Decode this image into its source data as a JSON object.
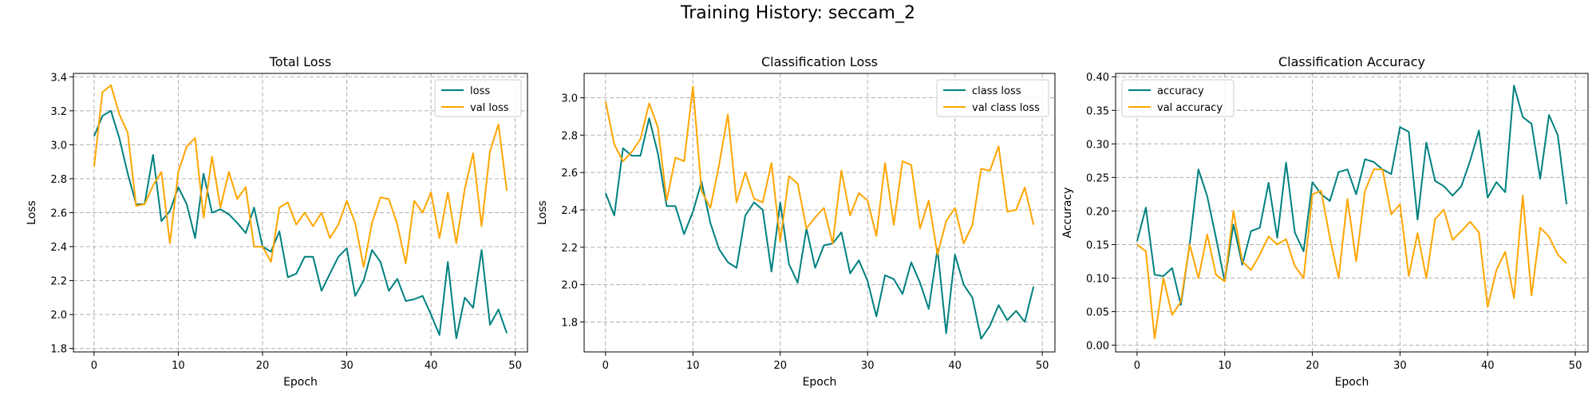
{
  "figure": {
    "title": "Training History: seccam_2"
  },
  "colors": {
    "train": "#008080",
    "val": "#FFA500",
    "grid": "#b0b0b0"
  },
  "chart_data": [
    {
      "type": "line",
      "title": "Total Loss",
      "xlabel": "Epoch",
      "ylabel": "Loss",
      "xlim": [
        -2.45,
        51.45
      ],
      "ylim": [
        1.78,
        3.42
      ],
      "xticks": [
        0,
        10,
        20,
        30,
        40,
        50
      ],
      "xtick_labels": [
        "0",
        "10",
        "20",
        "30",
        "40",
        "50"
      ],
      "yticks": [
        1.8,
        2.0,
        2.2,
        2.4,
        2.6,
        2.8,
        3.0,
        3.2,
        3.4
      ],
      "ytick_labels": [
        "1.8",
        "2.0",
        "2.2",
        "2.4",
        "2.6",
        "2.8",
        "3.0",
        "3.2",
        "3.4"
      ],
      "grid": true,
      "legend_position": "upper right",
      "x": [
        0,
        1,
        2,
        3,
        4,
        5,
        6,
        7,
        8,
        9,
        10,
        11,
        12,
        13,
        14,
        15,
        16,
        17,
        18,
        19,
        20,
        21,
        22,
        23,
        24,
        25,
        26,
        27,
        28,
        29,
        30,
        31,
        32,
        33,
        34,
        35,
        36,
        37,
        38,
        39,
        40,
        41,
        42,
        43,
        44,
        45,
        46,
        47,
        48,
        49
      ],
      "series": [
        {
          "name": "loss",
          "color": "#008080",
          "values": [
            3.05,
            3.17,
            3.2,
            3.04,
            2.83,
            2.65,
            2.65,
            2.94,
            2.55,
            2.61,
            2.75,
            2.65,
            2.45,
            2.83,
            2.6,
            2.62,
            2.59,
            2.54,
            2.48,
            2.63,
            2.4,
            2.37,
            2.49,
            2.22,
            2.24,
            2.34,
            2.34,
            2.14,
            2.24,
            2.34,
            2.39,
            2.11,
            2.2,
            2.38,
            2.31,
            2.14,
            2.21,
            2.08,
            2.09,
            2.11,
            2.0,
            1.88,
            2.31,
            1.86,
            2.1,
            2.04,
            2.38,
            1.94,
            2.03,
            1.89
          ]
        },
        {
          "name": "val loss",
          "color": "#FFA500",
          "values": [
            2.87,
            3.31,
            3.35,
            3.18,
            3.07,
            2.64,
            2.65,
            2.76,
            2.84,
            2.42,
            2.84,
            2.99,
            3.04,
            2.57,
            2.93,
            2.63,
            2.84,
            2.68,
            2.75,
            2.4,
            2.4,
            2.31,
            2.63,
            2.66,
            2.53,
            2.6,
            2.52,
            2.6,
            2.45,
            2.53,
            2.67,
            2.54,
            2.28,
            2.54,
            2.69,
            2.68,
            2.53,
            2.3,
            2.67,
            2.6,
            2.72,
            2.45,
            2.72,
            2.42,
            2.74,
            2.95,
            2.52,
            2.96,
            3.12,
            2.73
          ]
        }
      ]
    },
    {
      "type": "line",
      "title": "Classification Loss",
      "xlabel": "Epoch",
      "ylabel": "Loss",
      "xlim": [
        -2.45,
        51.45
      ],
      "ylim": [
        1.64,
        3.13
      ],
      "xticks": [
        0,
        10,
        20,
        30,
        40,
        50
      ],
      "xtick_labels": [
        "0",
        "10",
        "20",
        "30",
        "40",
        "50"
      ],
      "yticks": [
        1.8,
        2.0,
        2.2,
        2.4,
        2.6,
        2.8,
        3.0
      ],
      "ytick_labels": [
        "1.8",
        "2.0",
        "2.2",
        "2.4",
        "2.6",
        "2.8",
        "3.0"
      ],
      "grid": true,
      "legend_position": "upper right",
      "x": [
        0,
        1,
        2,
        3,
        4,
        5,
        6,
        7,
        8,
        9,
        10,
        11,
        12,
        13,
        14,
        15,
        16,
        17,
        18,
        19,
        20,
        21,
        22,
        23,
        24,
        25,
        26,
        27,
        28,
        29,
        30,
        31,
        32,
        33,
        34,
        35,
        36,
        37,
        38,
        39,
        40,
        41,
        42,
        43,
        44,
        45,
        46,
        47,
        48,
        49
      ],
      "series": [
        {
          "name": "class loss",
          "color": "#008080",
          "values": [
            2.49,
            2.37,
            2.73,
            2.69,
            2.69,
            2.89,
            2.7,
            2.42,
            2.42,
            2.27,
            2.39,
            2.55,
            2.33,
            2.19,
            2.12,
            2.09,
            2.37,
            2.44,
            2.4,
            2.07,
            2.44,
            2.11,
            2.01,
            2.3,
            2.09,
            2.21,
            2.22,
            2.28,
            2.06,
            2.13,
            2.02,
            1.83,
            2.05,
            2.03,
            1.95,
            2.12,
            2.01,
            1.87,
            2.19,
            1.74,
            2.16,
            2.0,
            1.93,
            1.71,
            1.78,
            1.89,
            1.81,
            1.86,
            1.8,
            1.99
          ]
        },
        {
          "name": "val class loss",
          "color": "#FFA500",
          "values": [
            2.98,
            2.75,
            2.66,
            2.71,
            2.78,
            2.97,
            2.84,
            2.45,
            2.68,
            2.66,
            3.06,
            2.5,
            2.41,
            2.64,
            2.91,
            2.44,
            2.6,
            2.46,
            2.44,
            2.65,
            2.23,
            2.58,
            2.54,
            2.3,
            2.36,
            2.41,
            2.22,
            2.61,
            2.37,
            2.49,
            2.45,
            2.26,
            2.65,
            2.32,
            2.66,
            2.64,
            2.3,
            2.45,
            2.16,
            2.34,
            2.41,
            2.22,
            2.32,
            2.62,
            2.61,
            2.74,
            2.39,
            2.4,
            2.52,
            2.32
          ]
        }
      ]
    },
    {
      "type": "line",
      "title": "Classification Accuracy",
      "xlabel": "Epoch",
      "ylabel": "Accuracy",
      "xlim": [
        -2.45,
        51.45
      ],
      "ylim": [
        -0.01,
        0.405
      ],
      "xticks": [
        0,
        10,
        20,
        30,
        40,
        50
      ],
      "xtick_labels": [
        "0",
        "10",
        "20",
        "30",
        "40",
        "50"
      ],
      "yticks": [
        0.0,
        0.05,
        0.1,
        0.15,
        0.2,
        0.25,
        0.3,
        0.35,
        0.4
      ],
      "ytick_labels": [
        "0.00",
        "0.05",
        "0.10",
        "0.15",
        "0.20",
        "0.25",
        "0.30",
        "0.35",
        "0.40"
      ],
      "grid": true,
      "legend_position": "upper left",
      "x": [
        0,
        1,
        2,
        3,
        4,
        5,
        6,
        7,
        8,
        9,
        10,
        11,
        12,
        13,
        14,
        15,
        16,
        17,
        18,
        19,
        20,
        21,
        22,
        23,
        24,
        25,
        26,
        27,
        28,
        29,
        30,
        31,
        32,
        33,
        34,
        35,
        36,
        37,
        38,
        39,
        40,
        41,
        42,
        43,
        44,
        45,
        46,
        47,
        48,
        49
      ],
      "series": [
        {
          "name": "accuracy",
          "color": "#008080",
          "values": [
            0.155,
            0.205,
            0.105,
            0.103,
            0.115,
            0.06,
            0.15,
            0.262,
            0.222,
            0.16,
            0.095,
            0.18,
            0.12,
            0.17,
            0.175,
            0.242,
            0.16,
            0.272,
            0.168,
            0.14,
            0.243,
            0.225,
            0.215,
            0.258,
            0.262,
            0.225,
            0.277,
            0.273,
            0.262,
            0.255,
            0.325,
            0.318,
            0.187,
            0.302,
            0.245,
            0.237,
            0.223,
            0.237,
            0.275,
            0.32,
            0.22,
            0.243,
            0.228,
            0.387,
            0.34,
            0.33,
            0.248,
            0.343,
            0.313,
            0.21
          ]
        },
        {
          "name": "val accuracy",
          "color": "#FFA500",
          "values": [
            0.15,
            0.14,
            0.01,
            0.1,
            0.045,
            0.065,
            0.15,
            0.1,
            0.165,
            0.105,
            0.095,
            0.2,
            0.125,
            0.112,
            0.135,
            0.162,
            0.15,
            0.158,
            0.118,
            0.1,
            0.225,
            0.23,
            0.16,
            0.1,
            0.218,
            0.125,
            0.23,
            0.262,
            0.262,
            0.195,
            0.21,
            0.103,
            0.167,
            0.1,
            0.188,
            0.202,
            0.157,
            0.17,
            0.184,
            0.168,
            0.057,
            0.112,
            0.139,
            0.07,
            0.223,
            0.074,
            0.175,
            0.162,
            0.135,
            0.122
          ]
        }
      ]
    }
  ]
}
